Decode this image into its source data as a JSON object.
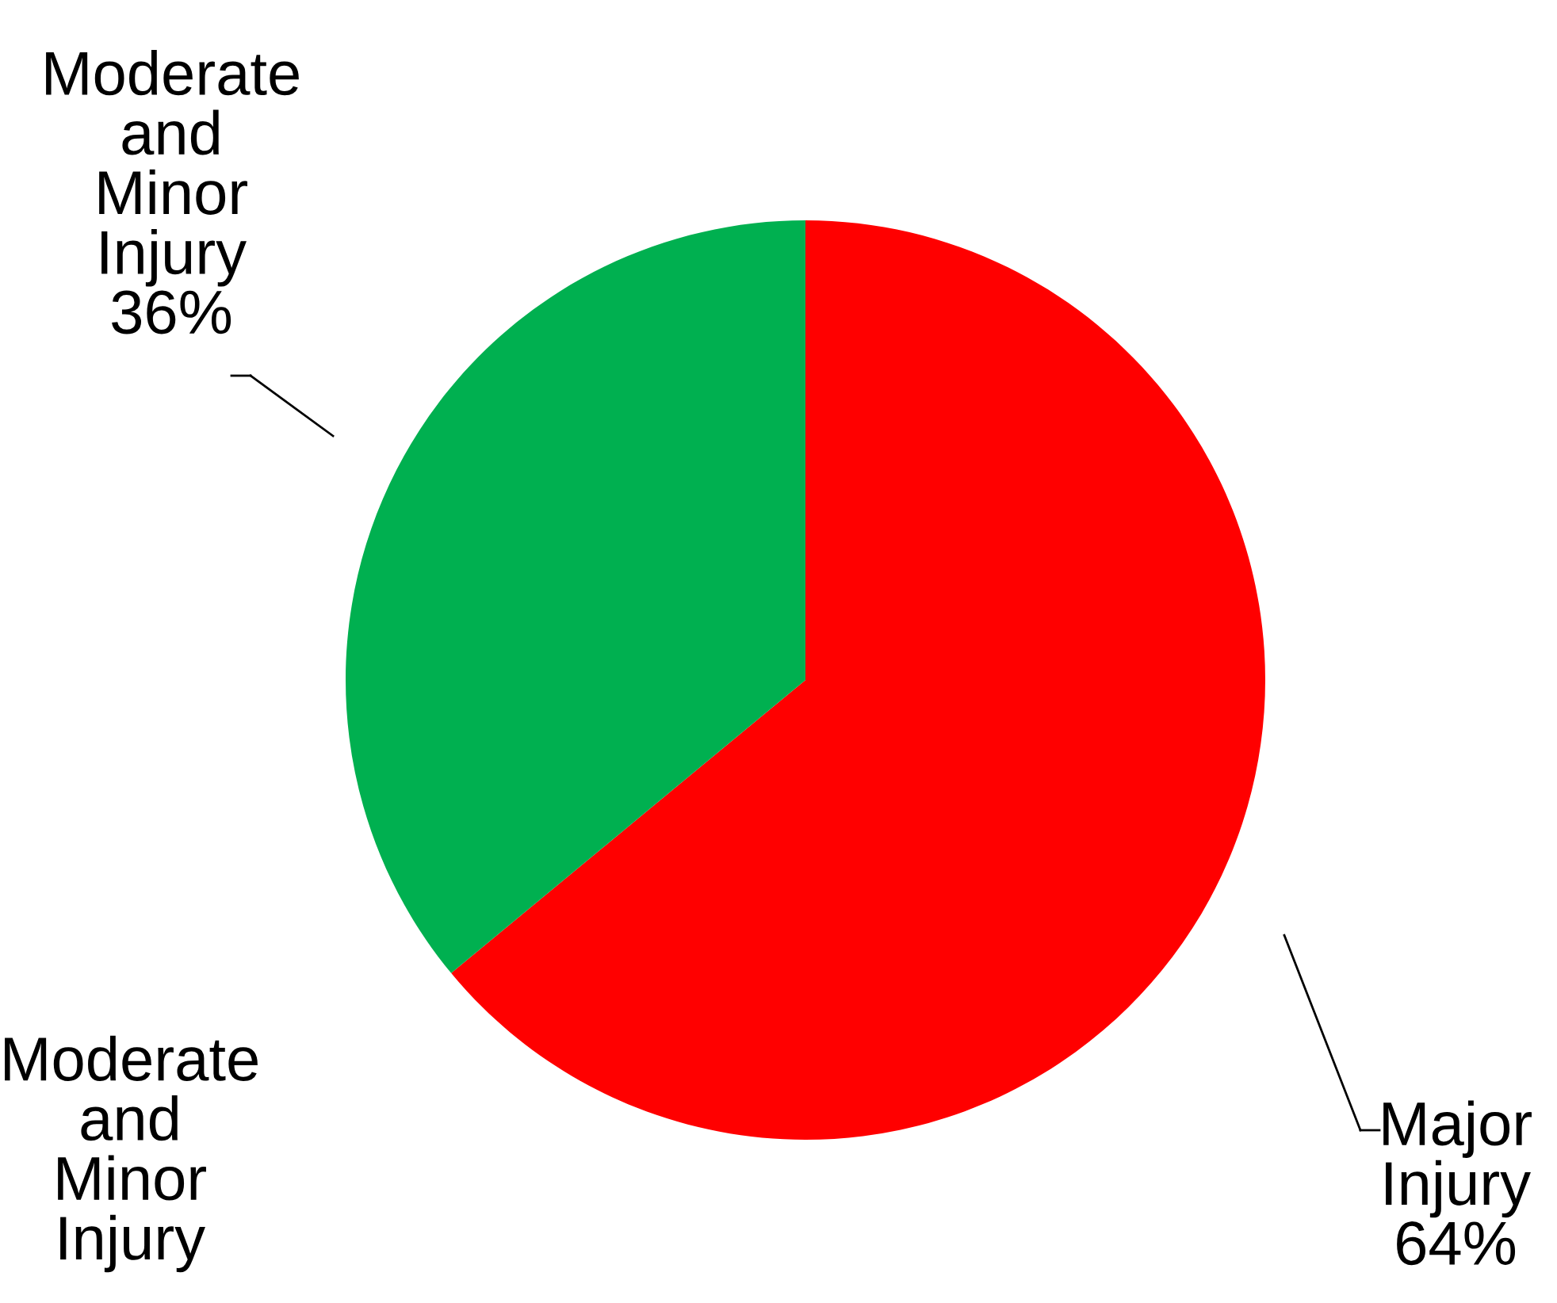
{
  "chart_data": {
    "type": "pie",
    "categories": [
      "Major Injury",
      "Moderate and Minor Injury"
    ],
    "values": [
      64,
      36
    ],
    "value_labels": [
      "64%",
      "36%"
    ],
    "colors": [
      "#ff0000",
      "#00b050"
    ],
    "annotations": [
      "Moderate and Minor Injury"
    ],
    "legend": false
  }
}
